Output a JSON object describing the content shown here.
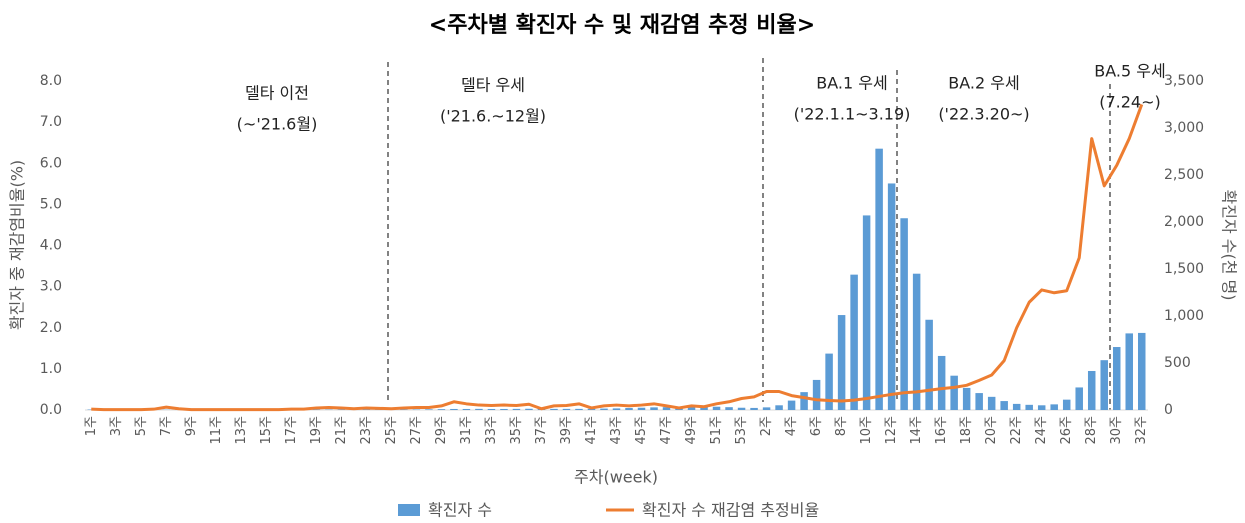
{
  "chart_data": {
    "type": "bar",
    "title": "<주차별 확진자 수 및 재감염 추정 비율>",
    "x_label": "주차(week)",
    "y_label": "확진자 중 재감염비율(%)",
    "y2_label": "확진자 수(천 명)",
    "categories": [
      "1주",
      null,
      "3주",
      null,
      "5주",
      null,
      "7주",
      null,
      "9주",
      null,
      "11주",
      null,
      "13주",
      null,
      "15주",
      null,
      "17주",
      null,
      "19주",
      null,
      "21주",
      null,
      "23주",
      null,
      "25주",
      null,
      "27주",
      null,
      "29주",
      null,
      "31주",
      null,
      "33주",
      null,
      "35주",
      null,
      "37주",
      null,
      "39주",
      null,
      "41주",
      null,
      "43주",
      null,
      "45주",
      null,
      "47주",
      null,
      "49주",
      null,
      "51주",
      null,
      "53주",
      null,
      "2주",
      null,
      "4주",
      null,
      "6주",
      null,
      "8주",
      null,
      "10주",
      null,
      "12주",
      null,
      "14주",
      null,
      "16주",
      null,
      "18주",
      null,
      "20주",
      null,
      "22주",
      null,
      "24주",
      null,
      "26주",
      null,
      "28주",
      null,
      "30주",
      null,
      "32주"
    ],
    "series": [
      {
        "name": "확진자 수",
        "type": "bar",
        "color": "#5b9bd5",
        "axis": "y2",
        "values": [
          5,
          4,
          3,
          3,
          2,
          3,
          3,
          3,
          3,
          3,
          3,
          3,
          4,
          4,
          4,
          4,
          5,
          5,
          4,
          4,
          4,
          4,
          4,
          4,
          4,
          4,
          5,
          7,
          9,
          11,
          11,
          12,
          11,
          11,
          12,
          13,
          14,
          12,
          12,
          12,
          13,
          15,
          17,
          21,
          24,
          28,
          30,
          36,
          40,
          38,
          35,
          30,
          24,
          22,
          28,
          50,
          100,
          190,
          320,
          600,
          1010,
          1440,
          2070,
          2780,
          2410,
          2040,
          1450,
          960,
          575,
          365,
          235,
          180,
          140,
          95,
          65,
          55,
          50,
          60,
          110,
          240,
          415,
          530,
          670,
          815,
          820
        ]
      },
      {
        "name": "확진자 수 재감염 추정비율",
        "type": "line",
        "color": "#ed7d31",
        "values": [
          0.02,
          0.01,
          0.01,
          0.01,
          0.01,
          0.02,
          0.07,
          0.03,
          0.01,
          0.01,
          0.01,
          0.01,
          0.01,
          0.01,
          0.01,
          0.01,
          0.02,
          0.02,
          0.05,
          0.06,
          0.05,
          0.03,
          0.05,
          0.04,
          0.03,
          0.05,
          0.06,
          0.06,
          0.1,
          0.2,
          0.15,
          0.12,
          0.11,
          0.12,
          0.11,
          0.14,
          0.03,
          0.1,
          0.11,
          0.15,
          0.05,
          0.1,
          0.12,
          0.1,
          0.12,
          0.15,
          0.1,
          0.05,
          0.1,
          0.08,
          0.15,
          0.2,
          0.28,
          0.32,
          0.45,
          0.45,
          0.35,
          0.3,
          0.25,
          0.23,
          0.22,
          0.24,
          0.28,
          0.33,
          0.38,
          0.42,
          0.44,
          0.48,
          0.52,
          0.55,
          0.6,
          0.72,
          0.85,
          1.2,
          2.0,
          2.62,
          2.92,
          2.85,
          2.9,
          3.7,
          6.6,
          5.45,
          5.95,
          6.6,
          7.43
        ]
      }
    ],
    "ylim": [
      0,
      8
    ],
    "yticks": [
      {
        "value": 0,
        "label": "0.0"
      },
      {
        "value": 1,
        "label": "1.0"
      },
      {
        "value": 2,
        "label": "2.0"
      },
      {
        "value": 3,
        "label": "3.0"
      },
      {
        "value": 4,
        "label": "4.0"
      },
      {
        "value": 5,
        "label": "5.0"
      },
      {
        "value": 6,
        "label": "6.0"
      },
      {
        "value": 7,
        "label": "7.0"
      },
      {
        "value": 8,
        "label": "8.0"
      }
    ],
    "y2lim": [
      0,
      3500
    ],
    "y2ticks": [
      0,
      500,
      {
        "value": 1000,
        "label": "1,000"
      },
      {
        "value": 1500,
        "label": "1,500"
      },
      {
        "value": 2000,
        "label": "2,000"
      },
      {
        "value": 2500,
        "label": "2,500"
      },
      {
        "value": 3000,
        "label": "3,000"
      },
      {
        "value": 3500,
        "label": "3,500"
      }
    ],
    "annotations": [
      "델타 이전",
      "(~'21.6월)",
      "델타 우세",
      "('21.6.~12월)",
      "BA.1 우세",
      "('22.1.1~3.19)",
      "BA.2 우세",
      "('22.3.20~)",
      "BA.5 우세",
      "(7.24~)"
    ]
  }
}
